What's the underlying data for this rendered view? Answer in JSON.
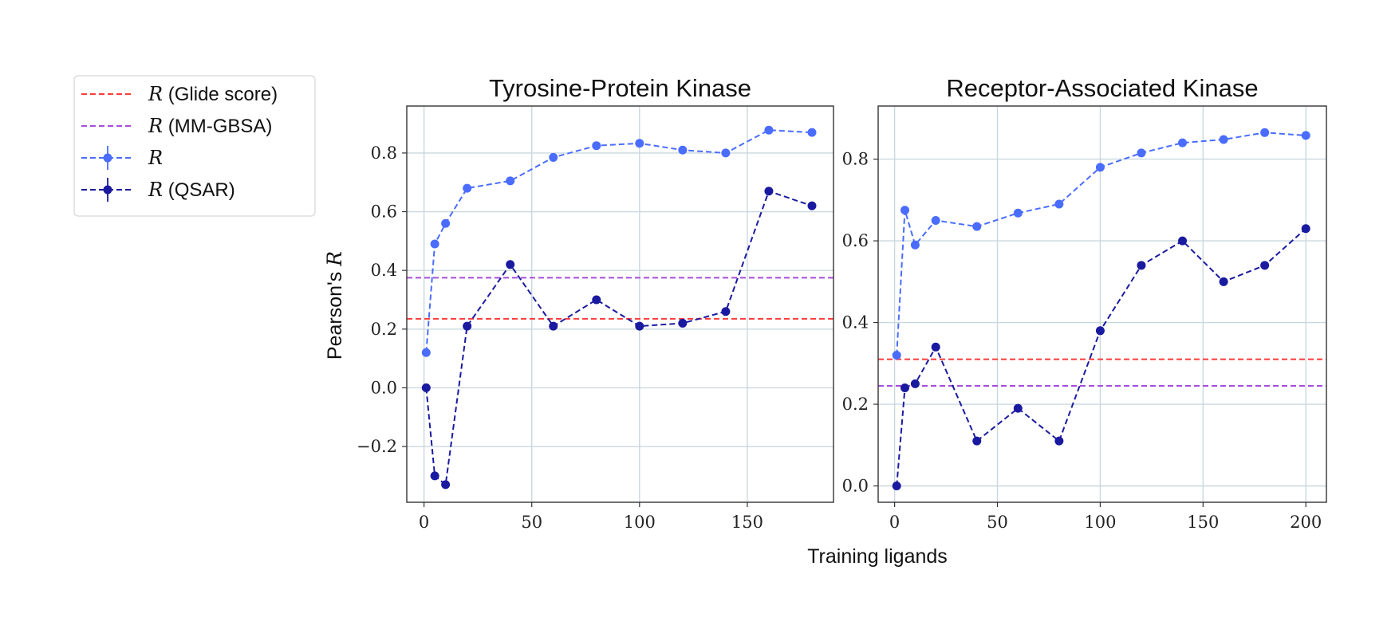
{
  "figure": {
    "xlabel": "Training ligands",
    "ylabel_text": "Pearson's ",
    "ylabel_symbol": "R"
  },
  "legend": {
    "placement": "outside-left",
    "entries": [
      {
        "symbol": "R",
        "text": " (Glide score)",
        "color": "#ff3b3b",
        "style": "dashed"
      },
      {
        "symbol": "R",
        "text": " (MM-GBSA)",
        "color": "#a64ddb",
        "style": "dashed"
      },
      {
        "symbol": "R",
        "text": "",
        "color": "#4a6cff",
        "style": "dashed-marker-errorbar"
      },
      {
        "symbol": "R",
        "text": " (QSAR)",
        "color": "#1a1aa0",
        "style": "dashed-marker-errorbar"
      }
    ]
  },
  "colors": {
    "glide": "#ff3b3b",
    "mmgbsa": "#a64ddb",
    "r": "#4a6cff",
    "qsar": "#1a1aa0",
    "grid": "#c9d8df"
  },
  "chart_data": [
    {
      "type": "line",
      "title": "Tyrosine-Protein Kinase",
      "xlim": [
        -8,
        190
      ],
      "ylim": [
        -0.39,
        0.96
      ],
      "xticks": [
        0,
        50,
        100,
        150
      ],
      "yticks": [
        -0.2,
        0.0,
        0.2,
        0.4,
        0.6,
        0.8
      ],
      "ytick_labels": [
        "−0.2",
        "0.0",
        "0.2",
        "0.4",
        "0.6",
        "0.8"
      ],
      "grid": true,
      "hlines": [
        {
          "name": "R (Glide score)",
          "y": 0.235
        },
        {
          "name": "R (MM-GBSA)",
          "y": 0.375
        }
      ],
      "series": [
        {
          "name": "R",
          "x": [
            1,
            5,
            10,
            20,
            40,
            60,
            80,
            100,
            120,
            140,
            160,
            180
          ],
          "values": [
            0.12,
            0.49,
            0.56,
            0.68,
            0.705,
            0.785,
            0.825,
            0.833,
            0.81,
            0.8,
            0.878,
            0.87
          ]
        },
        {
          "name": "R (QSAR)",
          "x": [
            1,
            5,
            10,
            20,
            40,
            60,
            80,
            100,
            120,
            140,
            160,
            180
          ],
          "values": [
            0.0,
            -0.3,
            -0.33,
            0.21,
            0.42,
            0.21,
            0.3,
            0.21,
            0.22,
            0.26,
            0.67,
            0.62
          ]
        }
      ]
    },
    {
      "type": "line",
      "title": "Receptor-Associated Kinase",
      "xlim": [
        -8,
        210
      ],
      "ylim": [
        -0.04,
        0.93
      ],
      "xticks": [
        0,
        50,
        100,
        150,
        200
      ],
      "yticks": [
        0.0,
        0.2,
        0.4,
        0.6,
        0.8
      ],
      "ytick_labels": [
        "0.0",
        "0.2",
        "0.4",
        "0.6",
        "0.8"
      ],
      "grid": true,
      "hlines": [
        {
          "name": "R (Glide score)",
          "y": 0.31
        },
        {
          "name": "R (MM-GBSA)",
          "y": 0.245
        }
      ],
      "series": [
        {
          "name": "R",
          "x": [
            1,
            5,
            10,
            20,
            40,
            60,
            80,
            100,
            120,
            140,
            160,
            180,
            200
          ],
          "values": [
            0.32,
            0.675,
            0.59,
            0.65,
            0.635,
            0.668,
            0.69,
            0.78,
            0.815,
            0.84,
            0.848,
            0.865,
            0.858
          ]
        },
        {
          "name": "R (QSAR)",
          "x": [
            1,
            5,
            10,
            20,
            40,
            60,
            80,
            100,
            120,
            140,
            160,
            180,
            200
          ],
          "values": [
            0.0,
            0.24,
            0.25,
            0.34,
            0.11,
            0.19,
            0.11,
            0.38,
            0.54,
            0.6,
            0.5,
            0.54,
            0.63
          ]
        }
      ]
    }
  ]
}
